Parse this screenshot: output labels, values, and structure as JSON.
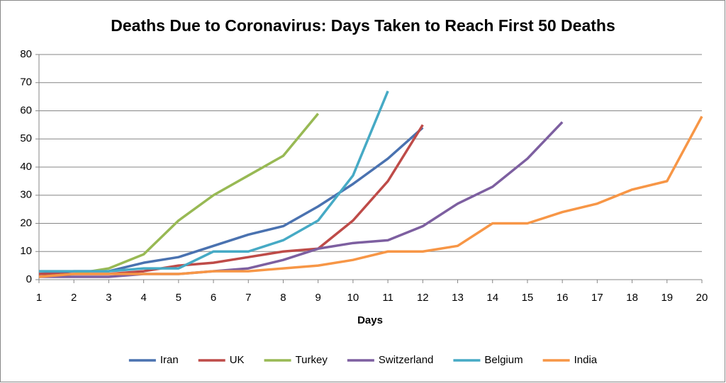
{
  "chart_data": {
    "type": "line",
    "title": "Deaths Due to Coronavirus: Days Taken to Reach First 50 Deaths",
    "x_label": "Days",
    "x": [
      1,
      2,
      3,
      4,
      5,
      6,
      7,
      8,
      9,
      10,
      11,
      12,
      13,
      14,
      15,
      16,
      17,
      18,
      19,
      20
    ],
    "xlim": [
      1,
      20
    ],
    "xticks": [
      1,
      2,
      3,
      4,
      5,
      6,
      7,
      8,
      9,
      10,
      11,
      12,
      13,
      14,
      15,
      16,
      17,
      18,
      19,
      20
    ],
    "ylim": [
      0,
      80
    ],
    "yticks": [
      0,
      10,
      20,
      30,
      40,
      50,
      60,
      70,
      80
    ],
    "grid": true,
    "legend": "bottom",
    "series": [
      {
        "name": "Iran",
        "color": "#4a72b0",
        "values": [
          2,
          3,
          3,
          6,
          8,
          12,
          16,
          19,
          26,
          34,
          43,
          54,
          null,
          null,
          null,
          null,
          null,
          null,
          null,
          null
        ]
      },
      {
        "name": "UK",
        "color": "#be4b48",
        "values": [
          2,
          2,
          2,
          3,
          5,
          6,
          8,
          10,
          11,
          21,
          35,
          55,
          null,
          null,
          null,
          null,
          null,
          null,
          null,
          null
        ]
      },
      {
        "name": "Turkey",
        "color": "#98b954",
        "values": [
          1,
          2,
          4,
          9,
          21,
          30,
          37,
          44,
          59,
          null,
          null,
          null,
          null,
          null,
          null,
          null,
          null,
          null,
          null,
          null
        ]
      },
      {
        "name": "Switzerland",
        "color": "#7d5fa0",
        "values": [
          1,
          1,
          1,
          2,
          2,
          3,
          4,
          7,
          11,
          13,
          14,
          19,
          27,
          33,
          43,
          56,
          null,
          null,
          null,
          null
        ]
      },
      {
        "name": "Belgium",
        "color": "#46aac5",
        "values": [
          3,
          3,
          3,
          4,
          4,
          10,
          10,
          14,
          21,
          37,
          67,
          null,
          null,
          null,
          null,
          null,
          null,
          null,
          null,
          null
        ]
      },
      {
        "name": "India",
        "color": "#f79646",
        "values": [
          1,
          2,
          2,
          2,
          2,
          3,
          3,
          4,
          5,
          7,
          10,
          10,
          12,
          20,
          20,
          24,
          27,
          32,
          35,
          58
        ]
      }
    ]
  }
}
